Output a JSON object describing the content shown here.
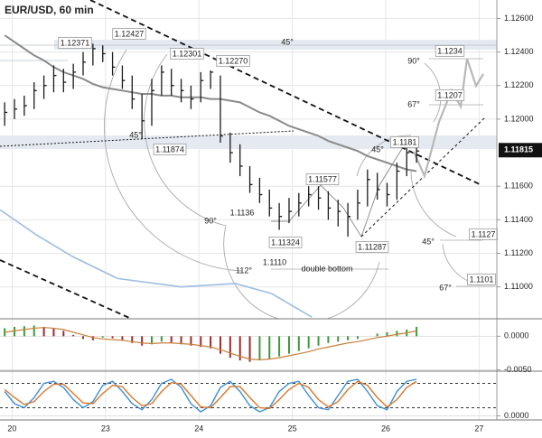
{
  "chart_data": {
    "type": "ohlc",
    "title": "EUR/USD, 60 min",
    "color": "#1a1a1a",
    "x": [
      -0.08,
      0.025,
      0.13,
      0.235,
      0.34,
      0.445,
      0.55,
      0.655,
      0.76,
      0.865,
      0.97,
      1.075,
      1.18,
      1.285,
      1.39,
      1.495,
      1.6,
      1.705,
      1.81,
      1.915,
      2.02,
      2.125,
      2.23,
      2.335,
      2.44,
      2.545,
      2.65,
      2.755,
      2.86,
      2.965,
      3.07,
      3.175,
      3.28,
      3.385,
      3.49,
      3.595,
      3.7,
      3.805,
      3.91,
      4.015,
      4.12,
      4.225,
      4.33
    ],
    "high": [
      1.121,
      1.1212,
      1.1214,
      1.1222,
      1.1226,
      1.1232,
      1.123,
      1.1233,
      1.124,
      1.1245,
      1.1244,
      1.124,
      1.1232,
      1.1226,
      1.1215,
      1.1224,
      1.1232,
      1.123,
      1.1224,
      1.122,
      1.1228,
      1.1229,
      1.1226,
      1.1192,
      1.1185,
      1.1172,
      1.1165,
      1.1158,
      1.115,
      1.1153,
      1.1156,
      1.116,
      1.116,
      1.1157,
      1.1152,
      1.115,
      1.1158,
      1.117,
      1.1168,
      1.1162,
      1.1174,
      1.1184,
      1.1186
    ],
    "low": [
      1.1196,
      1.12,
      1.1202,
      1.1206,
      1.1212,
      1.1216,
      1.1216,
      1.1218,
      1.1226,
      1.1232,
      1.1234,
      1.1226,
      1.1218,
      1.1206,
      1.1188,
      1.1196,
      1.1214,
      1.1214,
      1.121,
      1.1206,
      1.121,
      1.1218,
      1.1186,
      1.1174,
      1.1166,
      1.1156,
      1.115,
      1.1142,
      1.1134,
      1.1138,
      1.1142,
      1.1148,
      1.1146,
      1.114,
      1.1136,
      1.113,
      1.114,
      1.1148,
      1.1152,
      1.1148,
      1.1152,
      1.1166,
      1.1174
    ],
    "close": [
      1.1204,
      1.1206,
      1.1208,
      1.1217,
      1.122,
      1.1226,
      1.1222,
      1.1228,
      1.1234,
      1.1242,
      1.1239,
      1.1231,
      1.1223,
      1.1212,
      1.1199,
      1.1217,
      1.1228,
      1.122,
      1.1217,
      1.1212,
      1.1223,
      1.1228,
      1.119,
      1.118,
      1.1172,
      1.1161,
      1.1155,
      1.1147,
      1.1142,
      1.1145,
      1.115,
      1.1155,
      1.1153,
      1.1147,
      1.1145,
      1.1142,
      1.115,
      1.1164,
      1.1158,
      1.1155,
      1.1169,
      1.118,
      1.1181
    ],
    "overlays": [
      {
        "color": "#8a8a8a",
        "values": [
          1.125,
          1.1246,
          1.1242,
          1.1238,
          1.1235,
          1.1231,
          1.1228,
          1.1226,
          1.1224,
          1.1221,
          1.1219,
          1.1218,
          1.1217,
          1.1216,
          1.1215,
          1.1215,
          1.1214,
          1.1214,
          1.1213,
          1.1213,
          1.1213,
          1.1212,
          1.1212,
          1.1211,
          1.121,
          1.1207,
          1.1204,
          1.1202,
          1.1199,
          1.1196,
          1.1194,
          1.1192,
          1.119,
          1.1187,
          1.1185,
          1.1183,
          1.1181,
          1.1178,
          1.1176,
          1.1174,
          1.1172,
          1.117,
          1.1169
        ]
      },
      {
        "color": "#9dbde0",
        "x": [
          -0.13,
          0.26,
          0.65,
          1.13,
          1.81,
          2.39,
          2.78,
          3.21
        ],
        "values": [
          1.1146,
          1.1131,
          1.1118,
          1.1105,
          1.11,
          1.1102,
          1.1096,
          1.1082
        ]
      }
    ],
    "xlim": [
      -0.13,
      5.19
    ],
    "xticks": [
      {
        "value": 0,
        "label": "20"
      },
      {
        "value": 1,
        "label": "23"
      },
      {
        "value": 2,
        "label": "24"
      },
      {
        "value": 3,
        "label": "25"
      },
      {
        "value": 4,
        "label": "26"
      },
      {
        "value": 5,
        "label": "27"
      }
    ],
    "ylim": [
      1.1081,
      1.1271
    ],
    "yticks": [
      {
        "value": 1.126,
        "label": "1.12600"
      },
      {
        "value": 1.124,
        "label": "1.12400"
      },
      {
        "value": 1.122,
        "label": "1.12200"
      },
      {
        "value": 1.12,
        "label": "1.12000"
      },
      {
        "value": 1.116,
        "label": "1.11600"
      },
      {
        "value": 1.114,
        "label": "1.11400"
      },
      {
        "value": 1.112,
        "label": "1.11200"
      },
      {
        "value": 1.11,
        "label": "1.11000"
      }
    ],
    "grid": true,
    "last_price": {
      "value": 1.11815,
      "label": "1.11815"
    },
    "annotations": [
      "1.12371",
      "1.12427",
      "1.12301",
      "1.12270",
      "45°",
      "45°",
      "1.11874",
      "90°",
      "1.1136",
      "1.11324",
      "1.11577",
      "1.11287",
      "1.1110",
      "112°",
      "double bottom",
      "45°",
      "1.1181",
      "90°",
      "1.1234",
      "67°",
      "1.1207",
      "45°",
      "1.1127",
      "67°",
      "1.1101"
    ],
    "panels": [
      {
        "type": "macd",
        "ylim": [
          -0.0052,
          0.0026
        ],
        "yticks": [
          {
            "value": 0,
            "label": "0.0000"
          },
          {
            "value": -0.005,
            "label": "-0.0050"
          }
        ],
        "histogram": {
          "up_color": "#3c9a3c",
          "down_color": "#9a2d2d",
          "values": [
            0.0012,
            0.0014,
            0.0015,
            0.0016,
            0.0014,
            0.0012,
            0.0008,
            0.0002,
            -0.0004,
            -0.0006,
            -0.0002,
            -0.0003,
            -0.0006,
            -0.001,
            -0.0014,
            -0.0012,
            -0.0008,
            -0.001,
            -0.0012,
            -0.0014,
            -0.0016,
            -0.0018,
            -0.0026,
            -0.0032,
            -0.0036,
            -0.0038,
            -0.0036,
            -0.0034,
            -0.003,
            -0.0026,
            -0.0022,
            -0.0018,
            -0.0014,
            -0.001,
            -0.0008,
            -0.0006,
            -0.0004,
            0.0,
            0.0004,
            0.0006,
            0.0008,
            0.001,
            0.0014
          ]
        },
        "signal": {
          "color": "#c9803a",
          "values": [
            0.0006,
            0.0008,
            0.001,
            0.0012,
            0.0013,
            0.0012,
            0.001,
            0.0006,
            0.0002,
            -0.0002,
            -0.0004,
            -0.0005,
            -0.0006,
            -0.0008,
            -0.001,
            -0.0011,
            -0.001,
            -0.001,
            -0.0011,
            -0.0012,
            -0.0014,
            -0.0016,
            -0.002,
            -0.0025,
            -0.003,
            -0.0034,
            -0.0035,
            -0.0034,
            -0.0032,
            -0.0029,
            -0.0026,
            -0.0023,
            -0.0019,
            -0.0016,
            -0.0013,
            -0.001,
            -0.0008,
            -0.0005,
            -0.0002,
            0.0,
            0.0003,
            0.0005,
            0.0008
          ]
        }
      },
      {
        "type": "stochastic",
        "ylim": [
          -10,
          110
        ],
        "yticks": [
          {
            "value": 0,
            "label": "0.0000"
          }
        ],
        "levels": [
          80,
          20
        ],
        "series": [
          {
            "color": "#3d8fd6",
            "values": [
              60,
              30,
              20,
              45,
              80,
              85,
              70,
              40,
              20,
              35,
              75,
              85,
              60,
              30,
              15,
              40,
              80,
              90,
              70,
              30,
              10,
              25,
              70,
              85,
              60,
              25,
              10,
              20,
              60,
              80,
              85,
              50,
              20,
              15,
              50,
              85,
              90,
              60,
              25,
              15,
              60,
              85,
              90
            ]
          },
          {
            "color": "#d9772e",
            "values": [
              65,
              45,
              28,
              35,
              60,
              78,
              78,
              55,
              32,
              30,
              55,
              75,
              72,
              45,
              25,
              30,
              60,
              82,
              78,
              50,
              22,
              20,
              45,
              72,
              72,
              45,
              20,
              18,
              40,
              65,
              80,
              70,
              40,
              22,
              35,
              65,
              85,
              75,
              45,
              22,
              40,
              70,
              85
            ]
          }
        ]
      }
    ]
  }
}
